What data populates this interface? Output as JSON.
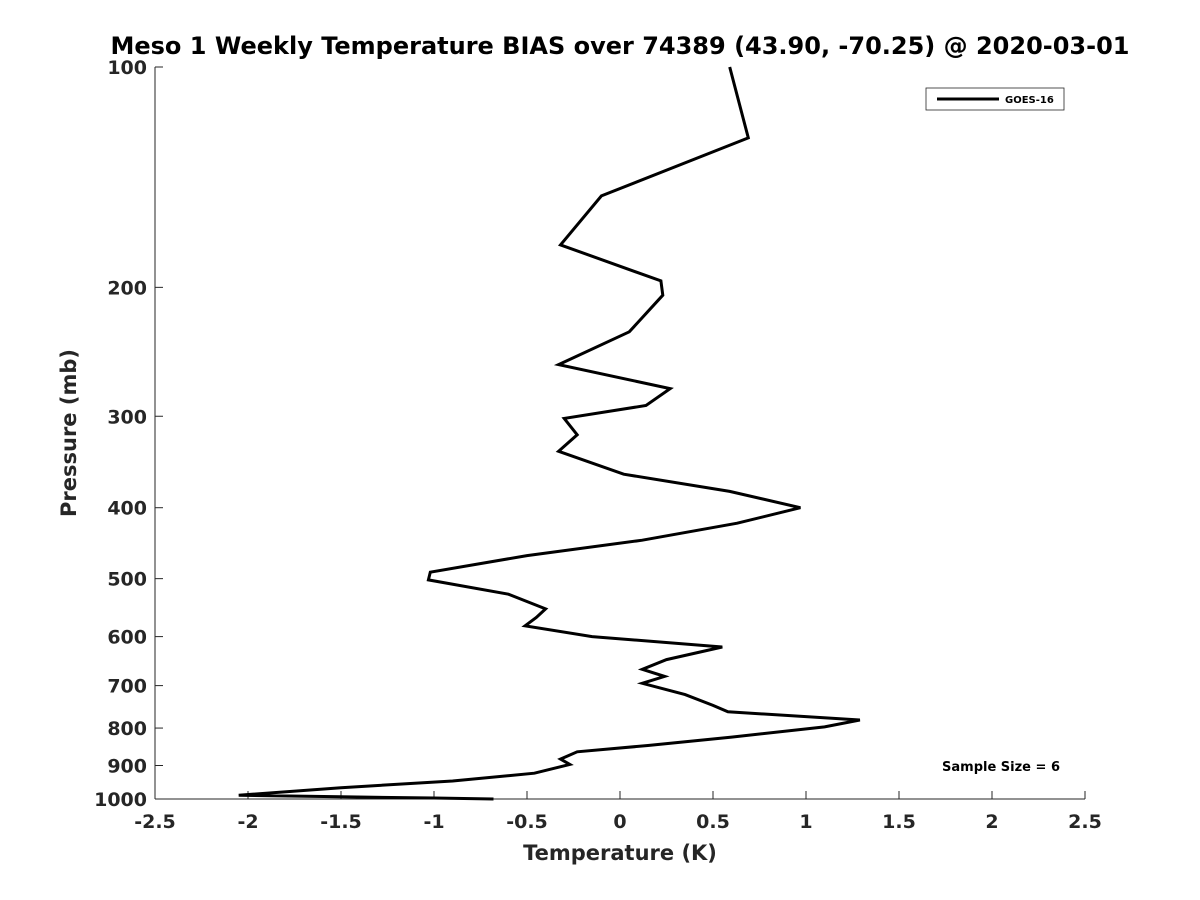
{
  "chart_data": {
    "type": "line",
    "title": "Meso 1 Weekly Temperature BIAS over 74389 (43.90, -70.25) @ 2020-03-01",
    "xlabel": "Temperature (K)",
    "ylabel": "Pressure (mb)",
    "xlim": [
      -2.5,
      2.5
    ],
    "ylim": [
      100,
      1000
    ],
    "yscale": "log",
    "y_reversed": true,
    "xticks": [
      "-2.5",
      "-2",
      "-1.5",
      "-1",
      "-0.5",
      "0",
      "0.5",
      "1",
      "1.5",
      "2",
      "2.5"
    ],
    "xtick_values": [
      -2.5,
      -2,
      -1.5,
      -1,
      -0.5,
      0,
      0.5,
      1,
      1.5,
      2,
      2.5
    ],
    "yticks": [
      "100",
      "200",
      "300",
      "400",
      "500",
      "600",
      "700",
      "800",
      "900",
      "1000"
    ],
    "ytick_values": [
      100,
      200,
      300,
      400,
      500,
      600,
      700,
      800,
      900,
      1000
    ],
    "grid": false,
    "legend_position": "top-right",
    "annotation": "Sample Size = 6",
    "series": [
      {
        "name": "GOES-16",
        "color": "#000000",
        "points": [
          [
            0.59,
            100
          ],
          [
            0.69,
            125
          ],
          [
            -0.1,
            150
          ],
          [
            -0.32,
            175
          ],
          [
            0.22,
            196
          ],
          [
            0.23,
            205
          ],
          [
            0.05,
            230
          ],
          [
            -0.33,
            255
          ],
          [
            0.27,
            275
          ],
          [
            0.14,
            290
          ],
          [
            -0.3,
            302
          ],
          [
            -0.23,
            318
          ],
          [
            -0.33,
            335
          ],
          [
            0.02,
            360
          ],
          [
            0.59,
            380
          ],
          [
            0.97,
            400
          ],
          [
            0.63,
            420
          ],
          [
            0.12,
            443
          ],
          [
            -0.5,
            465
          ],
          [
            -1.02,
            490
          ],
          [
            -1.03,
            502
          ],
          [
            -0.6,
            525
          ],
          [
            -0.4,
            550
          ],
          [
            -0.45,
            565
          ],
          [
            -0.51,
            580
          ],
          [
            -0.15,
            600
          ],
          [
            0.55,
            620
          ],
          [
            0.25,
            645
          ],
          [
            0.12,
            665
          ],
          [
            0.24,
            680
          ],
          [
            0.12,
            695
          ],
          [
            0.35,
            720
          ],
          [
            0.5,
            745
          ],
          [
            0.58,
            760
          ],
          [
            1.29,
            780
          ],
          [
            1.1,
            797
          ],
          [
            0.6,
            823
          ],
          [
            0.15,
            845
          ],
          [
            -0.23,
            862
          ],
          [
            -0.32,
            882
          ],
          [
            -0.27,
            897
          ],
          [
            -0.46,
            922
          ],
          [
            -0.9,
            945
          ],
          [
            -1.5,
            965
          ],
          [
            -2.05,
            988
          ],
          [
            -1.5,
            993
          ],
          [
            -1.0,
            997
          ],
          [
            -0.68,
            1000
          ]
        ]
      }
    ]
  }
}
